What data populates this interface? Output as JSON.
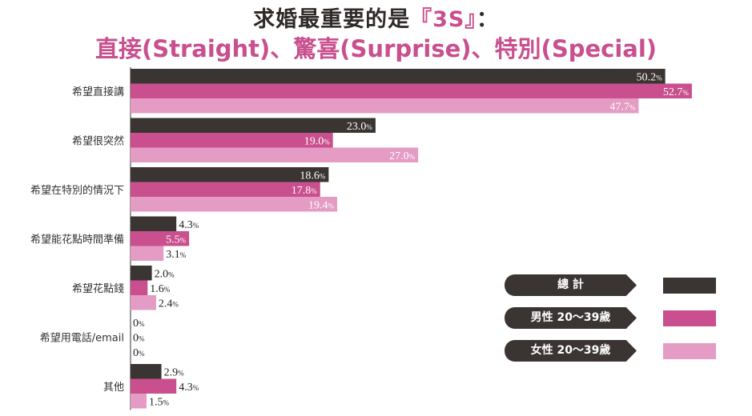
{
  "title_line1_prefix": "求婚最重要的是",
  "title_line1_highlight": "『3S』",
  "title_line1_suffix": "：",
  "title_line2": "直接(Straight)、驚喜(Surprise)、特別(Special)",
  "colors": {
    "total": "#3a3533",
    "male": "#c94f8e",
    "female": "#e49bc4",
    "axis": "#333333"
  },
  "chart_data": {
    "type": "bar",
    "orientation": "horizontal",
    "unit": "%",
    "xlim": [
      0,
      55
    ],
    "categories": [
      "希望直接講",
      "希望很突然",
      "希望在特別的情況下",
      "希望能花點時間準備",
      "希望花點錢",
      "希望用電話/email",
      "其他"
    ],
    "series": [
      {
        "name": "總計",
        "values": [
          50.2,
          23.0,
          18.6,
          4.3,
          2.0,
          0,
          2.9
        ]
      },
      {
        "name": "男性 20～39歲",
        "values": [
          52.7,
          19.0,
          17.8,
          5.5,
          1.6,
          0,
          4.3
        ]
      },
      {
        "name": "女性 20～39歲",
        "values": [
          47.7,
          27.0,
          19.4,
          3.1,
          2.4,
          0,
          1.5
        ]
      }
    ],
    "value_labels": [
      [
        "50.2",
        "52.7",
        "47.7"
      ],
      [
        "23.0",
        "19.0",
        "27.0"
      ],
      [
        "18.6",
        "17.8",
        "19.4"
      ],
      [
        "4.3",
        "5.5",
        "3.1"
      ],
      [
        "2.0",
        "1.6",
        "2.4"
      ],
      [
        "0",
        "0",
        "0"
      ],
      [
        "2.9",
        "4.3",
        "1.5"
      ]
    ],
    "legend_position": "bottom-right"
  },
  "legend": [
    {
      "label": "總 計"
    },
    {
      "label": "男性 20～39歲"
    },
    {
      "label": "女性 20～39歲"
    }
  ]
}
